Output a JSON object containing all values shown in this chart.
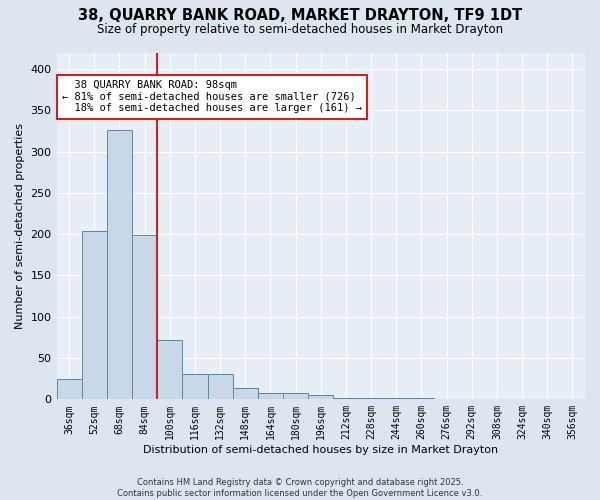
{
  "title_line1": "38, QUARRY BANK ROAD, MARKET DRAYTON, TF9 1DT",
  "title_line2": "Size of property relative to semi-detached houses in Market Drayton",
  "xlabel": "Distribution of semi-detached houses by size in Market Drayton",
  "ylabel": "Number of semi-detached properties",
  "footer_line1": "Contains HM Land Registry data © Crown copyright and database right 2025.",
  "footer_line2": "Contains public sector information licensed under the Open Government Licence v3.0.",
  "bar_labels": [
    "36sqm",
    "52sqm",
    "68sqm",
    "84sqm",
    "100sqm",
    "116sqm",
    "132sqm",
    "148sqm",
    "164sqm",
    "180sqm",
    "196sqm",
    "212sqm",
    "228sqm",
    "244sqm",
    "260sqm",
    "276sqm",
    "292sqm",
    "308sqm",
    "324sqm",
    "340sqm",
    "356sqm"
  ],
  "bar_values": [
    25,
    204,
    326,
    199,
    72,
    31,
    31,
    14,
    8,
    8,
    5,
    2,
    2,
    2,
    2,
    1,
    0,
    1,
    0,
    0,
    1
  ],
  "bar_color": "#c8d8e8",
  "bar_edge_color": "#5588aa",
  "vline_color": "#cc2222",
  "vline_label": "38 QUARRY BANK ROAD: 98sqm",
  "pct_smaller": "81%",
  "n_smaller": 726,
  "pct_larger": "18%",
  "n_larger": 161,
  "annotation_box_color": "#cc2222",
  "ylim": [
    0,
    420
  ],
  "yticks": [
    0,
    50,
    100,
    150,
    200,
    250,
    300,
    350,
    400
  ],
  "background_color": "#dde6f0",
  "plot_bg_color": "#e8eef6"
}
